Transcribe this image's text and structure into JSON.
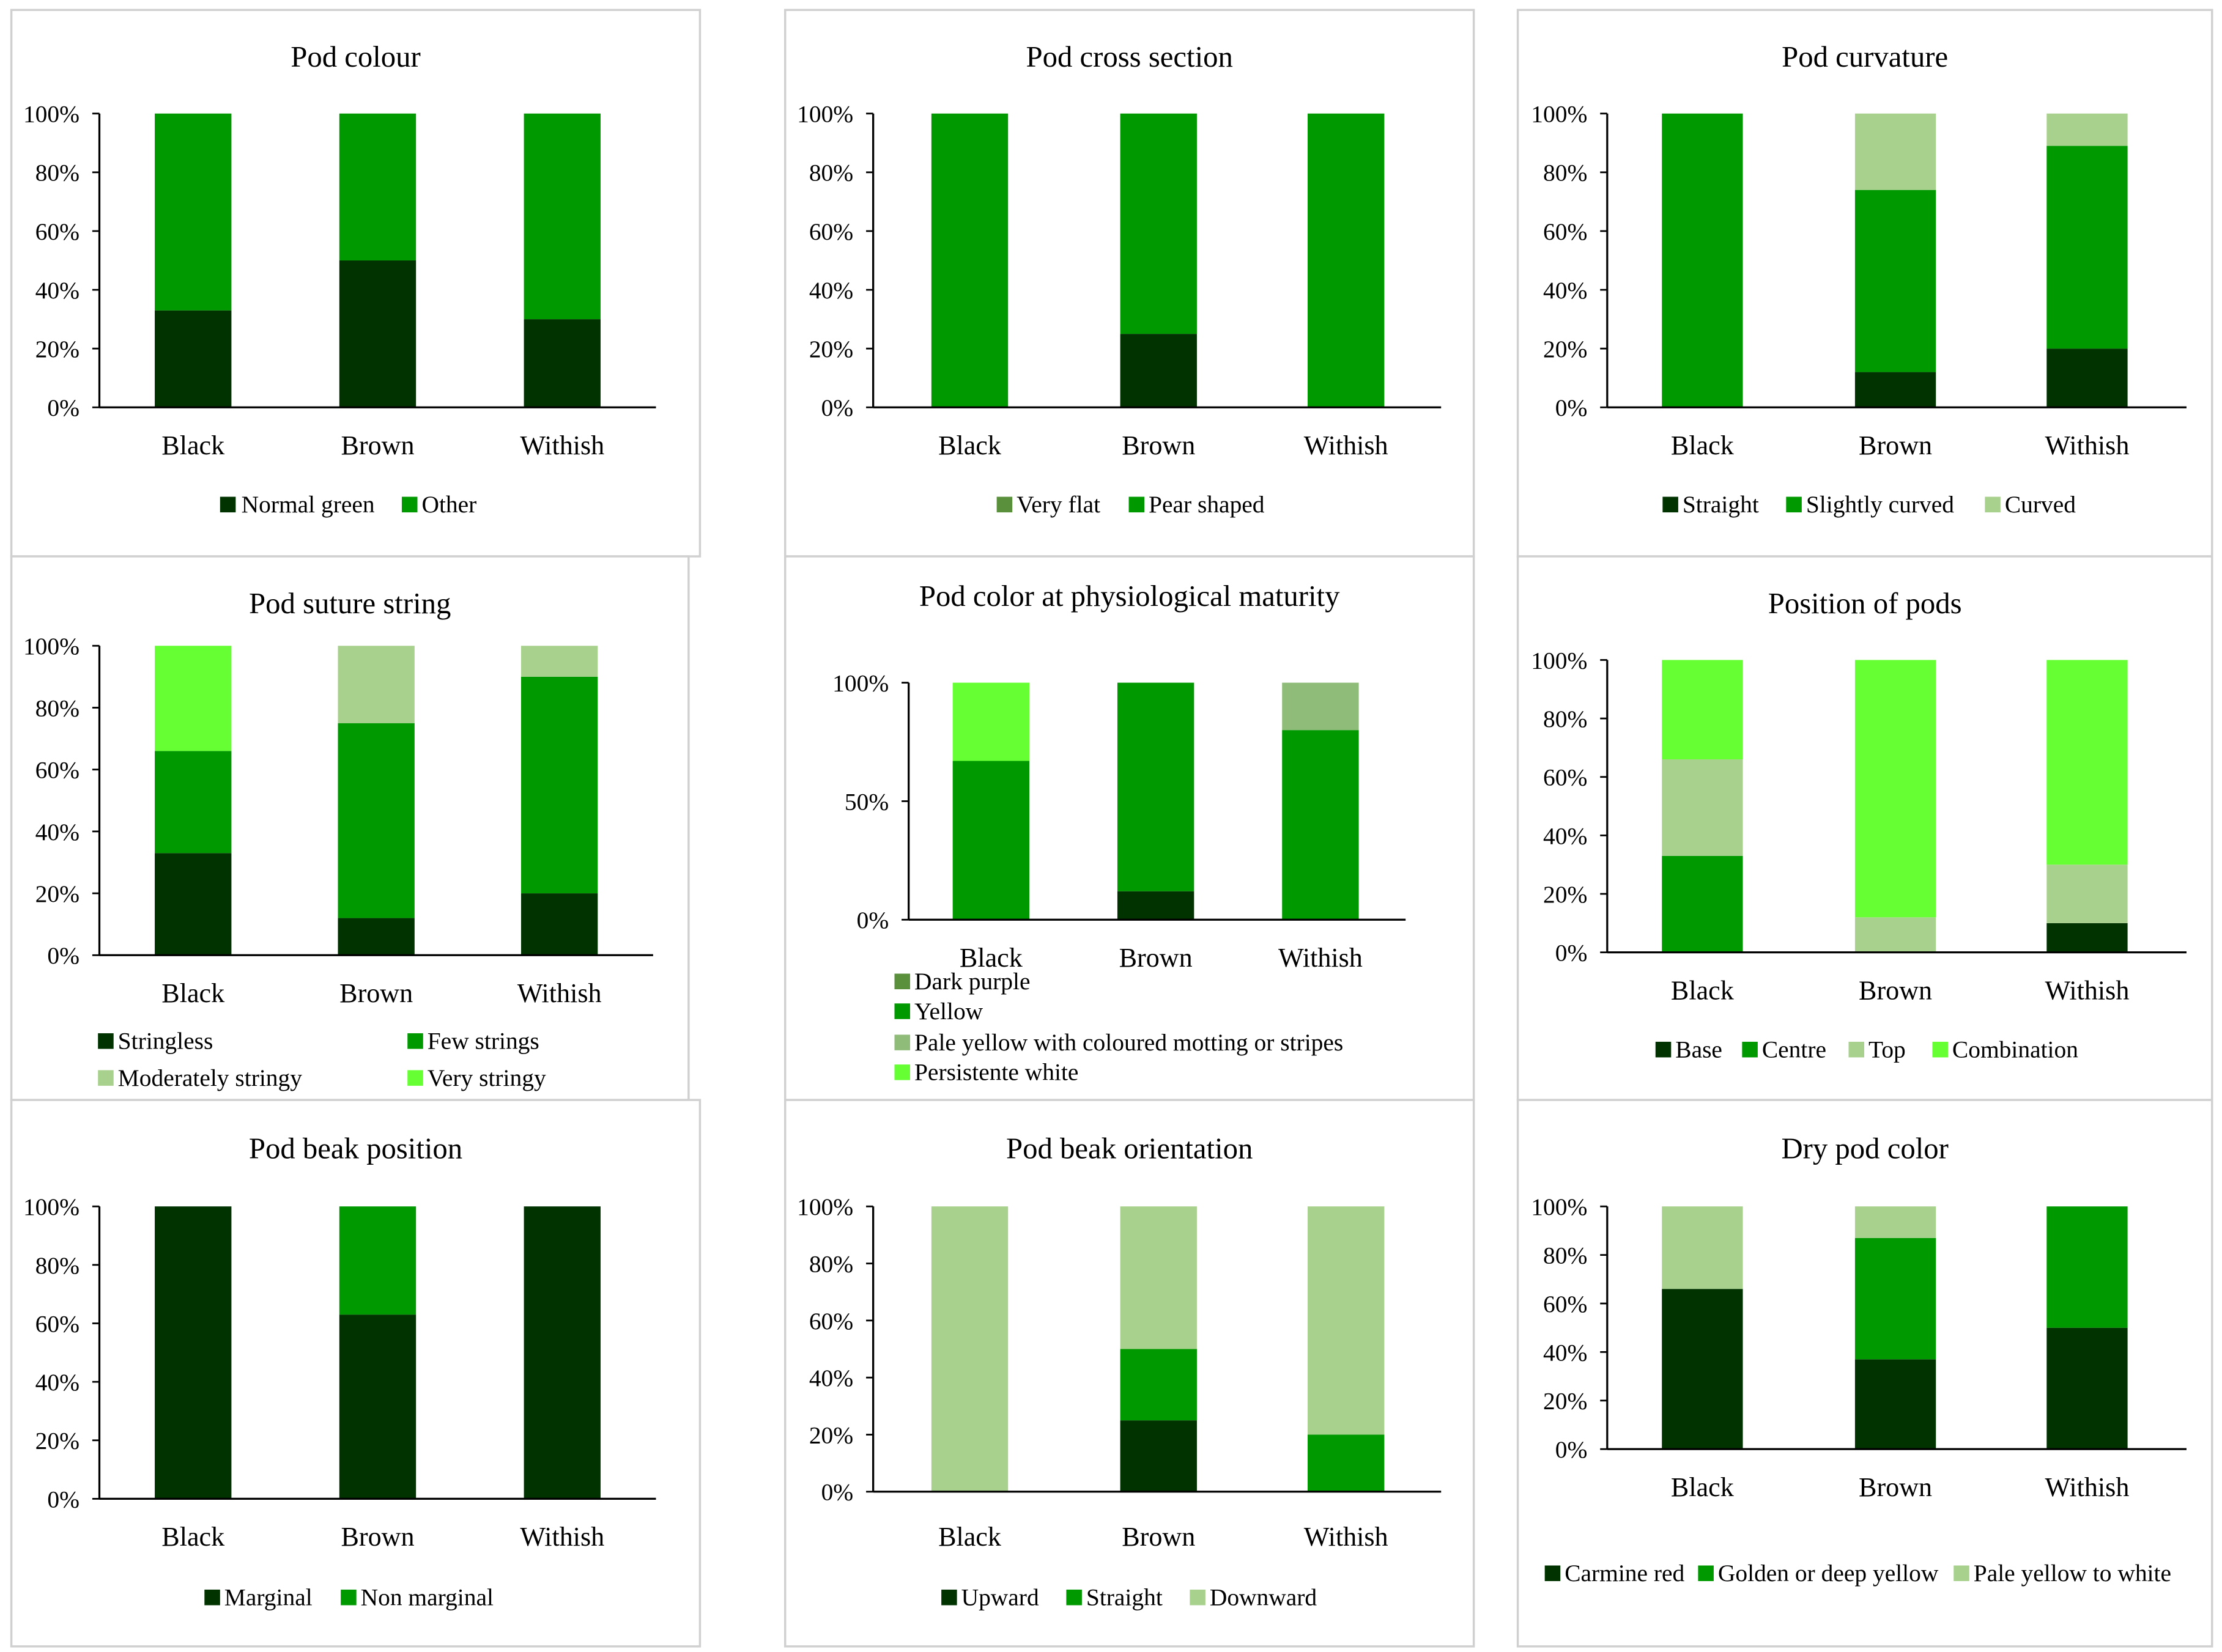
{
  "chart_data": [
    {
      "type": "bar",
      "stacked": true,
      "title": "Pod colour",
      "categories": [
        "Black",
        "Brown",
        "Withish"
      ],
      "y_tick_labels": [
        "0%",
        "20%",
        "40%",
        "60%",
        "80%",
        "100%"
      ],
      "series": [
        {
          "name": "Normal green",
          "values": [
            33,
            50,
            30
          ],
          "color": "#003300"
        },
        {
          "name": "Other",
          "values": [
            67,
            50,
            70
          ],
          "color": "#009900"
        }
      ],
      "ylim": [
        0,
        100
      ]
    },
    {
      "type": "bar",
      "stacked": true,
      "title": "Pod cross section",
      "categories": [
        "Black",
        "Brown",
        "Withish"
      ],
      "y_tick_labels": [
        "0%",
        "20%",
        "40%",
        "60%",
        "80%",
        "100%"
      ],
      "series": [
        {
          "name": "Very flat",
          "values": [
            0,
            25,
            0
          ],
          "color": "#003300",
          "legend_color": "#5a8f3c"
        },
        {
          "name": "Pear shaped",
          "values": [
            100,
            75,
            100
          ],
          "color": "#009900"
        }
      ],
      "ylim": [
        0,
        100
      ]
    },
    {
      "type": "bar",
      "stacked": true,
      "title": "Pod curvature",
      "categories": [
        "Black",
        "Brown",
        "Withish"
      ],
      "y_tick_labels": [
        "0%",
        "20%",
        "40%",
        "60%",
        "80%",
        "100%"
      ],
      "series": [
        {
          "name": "Straight",
          "values": [
            0,
            12,
            20
          ],
          "color": "#003300"
        },
        {
          "name": "Slightly curved",
          "values": [
            100,
            62,
            69
          ],
          "color": "#009900"
        },
        {
          "name": "Curved",
          "values": [
            0,
            26,
            11
          ],
          "color": "#a9d18e"
        }
      ],
      "ylim": [
        0,
        100
      ]
    },
    {
      "type": "bar",
      "stacked": true,
      "title": "Pod suture string",
      "categories": [
        "Black",
        "Brown",
        "Withish"
      ],
      "y_tick_labels": [
        "0%",
        "20%",
        "40%",
        "60%",
        "80%",
        "100%"
      ],
      "series": [
        {
          "name": "Stringless",
          "values": [
            33,
            12,
            20
          ],
          "color": "#003300"
        },
        {
          "name": "Few strings",
          "values": [
            33,
            63,
            70
          ],
          "color": "#009900"
        },
        {
          "name": "Moderately stringy",
          "values": [
            0,
            25,
            10
          ],
          "color": "#a9d18e"
        },
        {
          "name": "Very stringy",
          "values": [
            34,
            0,
            0
          ],
          "color": "#66ff33"
        }
      ],
      "ylim": [
        0,
        100
      ]
    },
    {
      "type": "bar",
      "stacked": true,
      "title": "Pod color at physiological  maturity",
      "categories": [
        "Black",
        "Brown",
        "Withish"
      ],
      "y_tick_labels": [
        "0%",
        "50%",
        "100%"
      ],
      "series": [
        {
          "name": "Dark purple",
          "values": [
            0,
            12,
            0
          ],
          "color": "#003300",
          "legend_color": "#5a8f3c"
        },
        {
          "name": "Yellow",
          "values": [
            67,
            88,
            80
          ],
          "color": "#009900"
        },
        {
          "name": "Pale yellow with coloured motting or stripes",
          "values": [
            0,
            0,
            20
          ],
          "color": "#8fbc78"
        },
        {
          "name": "Persistente white",
          "values": [
            33,
            0,
            0
          ],
          "color": "#66ff33"
        }
      ],
      "ylim": [
        0,
        100
      ]
    },
    {
      "type": "bar",
      "stacked": true,
      "title": "Position of pods",
      "categories": [
        "Black",
        "Brown",
        "Withish"
      ],
      "y_tick_labels": [
        "0%",
        "20%",
        "40%",
        "60%",
        "80%",
        "100%"
      ],
      "series": [
        {
          "name": "Base",
          "values": [
            0,
            0,
            10
          ],
          "color": "#003300"
        },
        {
          "name": "Centre",
          "values": [
            33,
            0,
            0
          ],
          "color": "#009900"
        },
        {
          "name": "Top",
          "values": [
            33,
            12,
            20
          ],
          "color": "#a9d18e"
        },
        {
          "name": "Combination",
          "values": [
            34,
            88,
            70
          ],
          "color": "#66ff33"
        }
      ],
      "ylim": [
        0,
        100
      ]
    },
    {
      "type": "bar",
      "stacked": true,
      "title": "Pod beak position",
      "categories": [
        "Black",
        "Brown",
        "Withish"
      ],
      "y_tick_labels": [
        "0%",
        "20%",
        "40%",
        "60%",
        "80%",
        "100%"
      ],
      "series": [
        {
          "name": "Marginal",
          "values": [
            100,
            63,
            100
          ],
          "color": "#003300"
        },
        {
          "name": "Non marginal",
          "values": [
            0,
            37,
            0
          ],
          "color": "#009900"
        }
      ],
      "ylim": [
        0,
        100
      ]
    },
    {
      "type": "bar",
      "stacked": true,
      "title": "Pod beak orientation",
      "categories": [
        "Black",
        "Brown",
        "Withish"
      ],
      "y_tick_labels": [
        "0%",
        "20%",
        "40%",
        "60%",
        "80%",
        "100%"
      ],
      "series": [
        {
          "name": "Upward",
          "values": [
            0,
            25,
            0
          ],
          "color": "#003300"
        },
        {
          "name": "Straight",
          "values": [
            0,
            25,
            20
          ],
          "color": "#009900"
        },
        {
          "name": "Downward",
          "values": [
            100,
            50,
            80
          ],
          "color": "#a9d18e"
        }
      ],
      "ylim": [
        0,
        100
      ]
    },
    {
      "type": "bar",
      "stacked": true,
      "title": "Dry pod color",
      "categories": [
        "Black",
        "Brown",
        "Withish"
      ],
      "y_tick_labels": [
        "0%",
        "20%",
        "40%",
        "60%",
        "80%",
        "100%"
      ],
      "series": [
        {
          "name": "Carmine red",
          "values": [
            66,
            37,
            50
          ],
          "color": "#003300"
        },
        {
          "name": "Golden or deep yellow",
          "values": [
            0,
            50,
            50
          ],
          "color": "#009900"
        },
        {
          "name": "Pale yellow to white",
          "values": [
            34,
            13,
            0
          ],
          "color": "#a9d18e"
        }
      ],
      "ylim": [
        0,
        100
      ]
    }
  ]
}
